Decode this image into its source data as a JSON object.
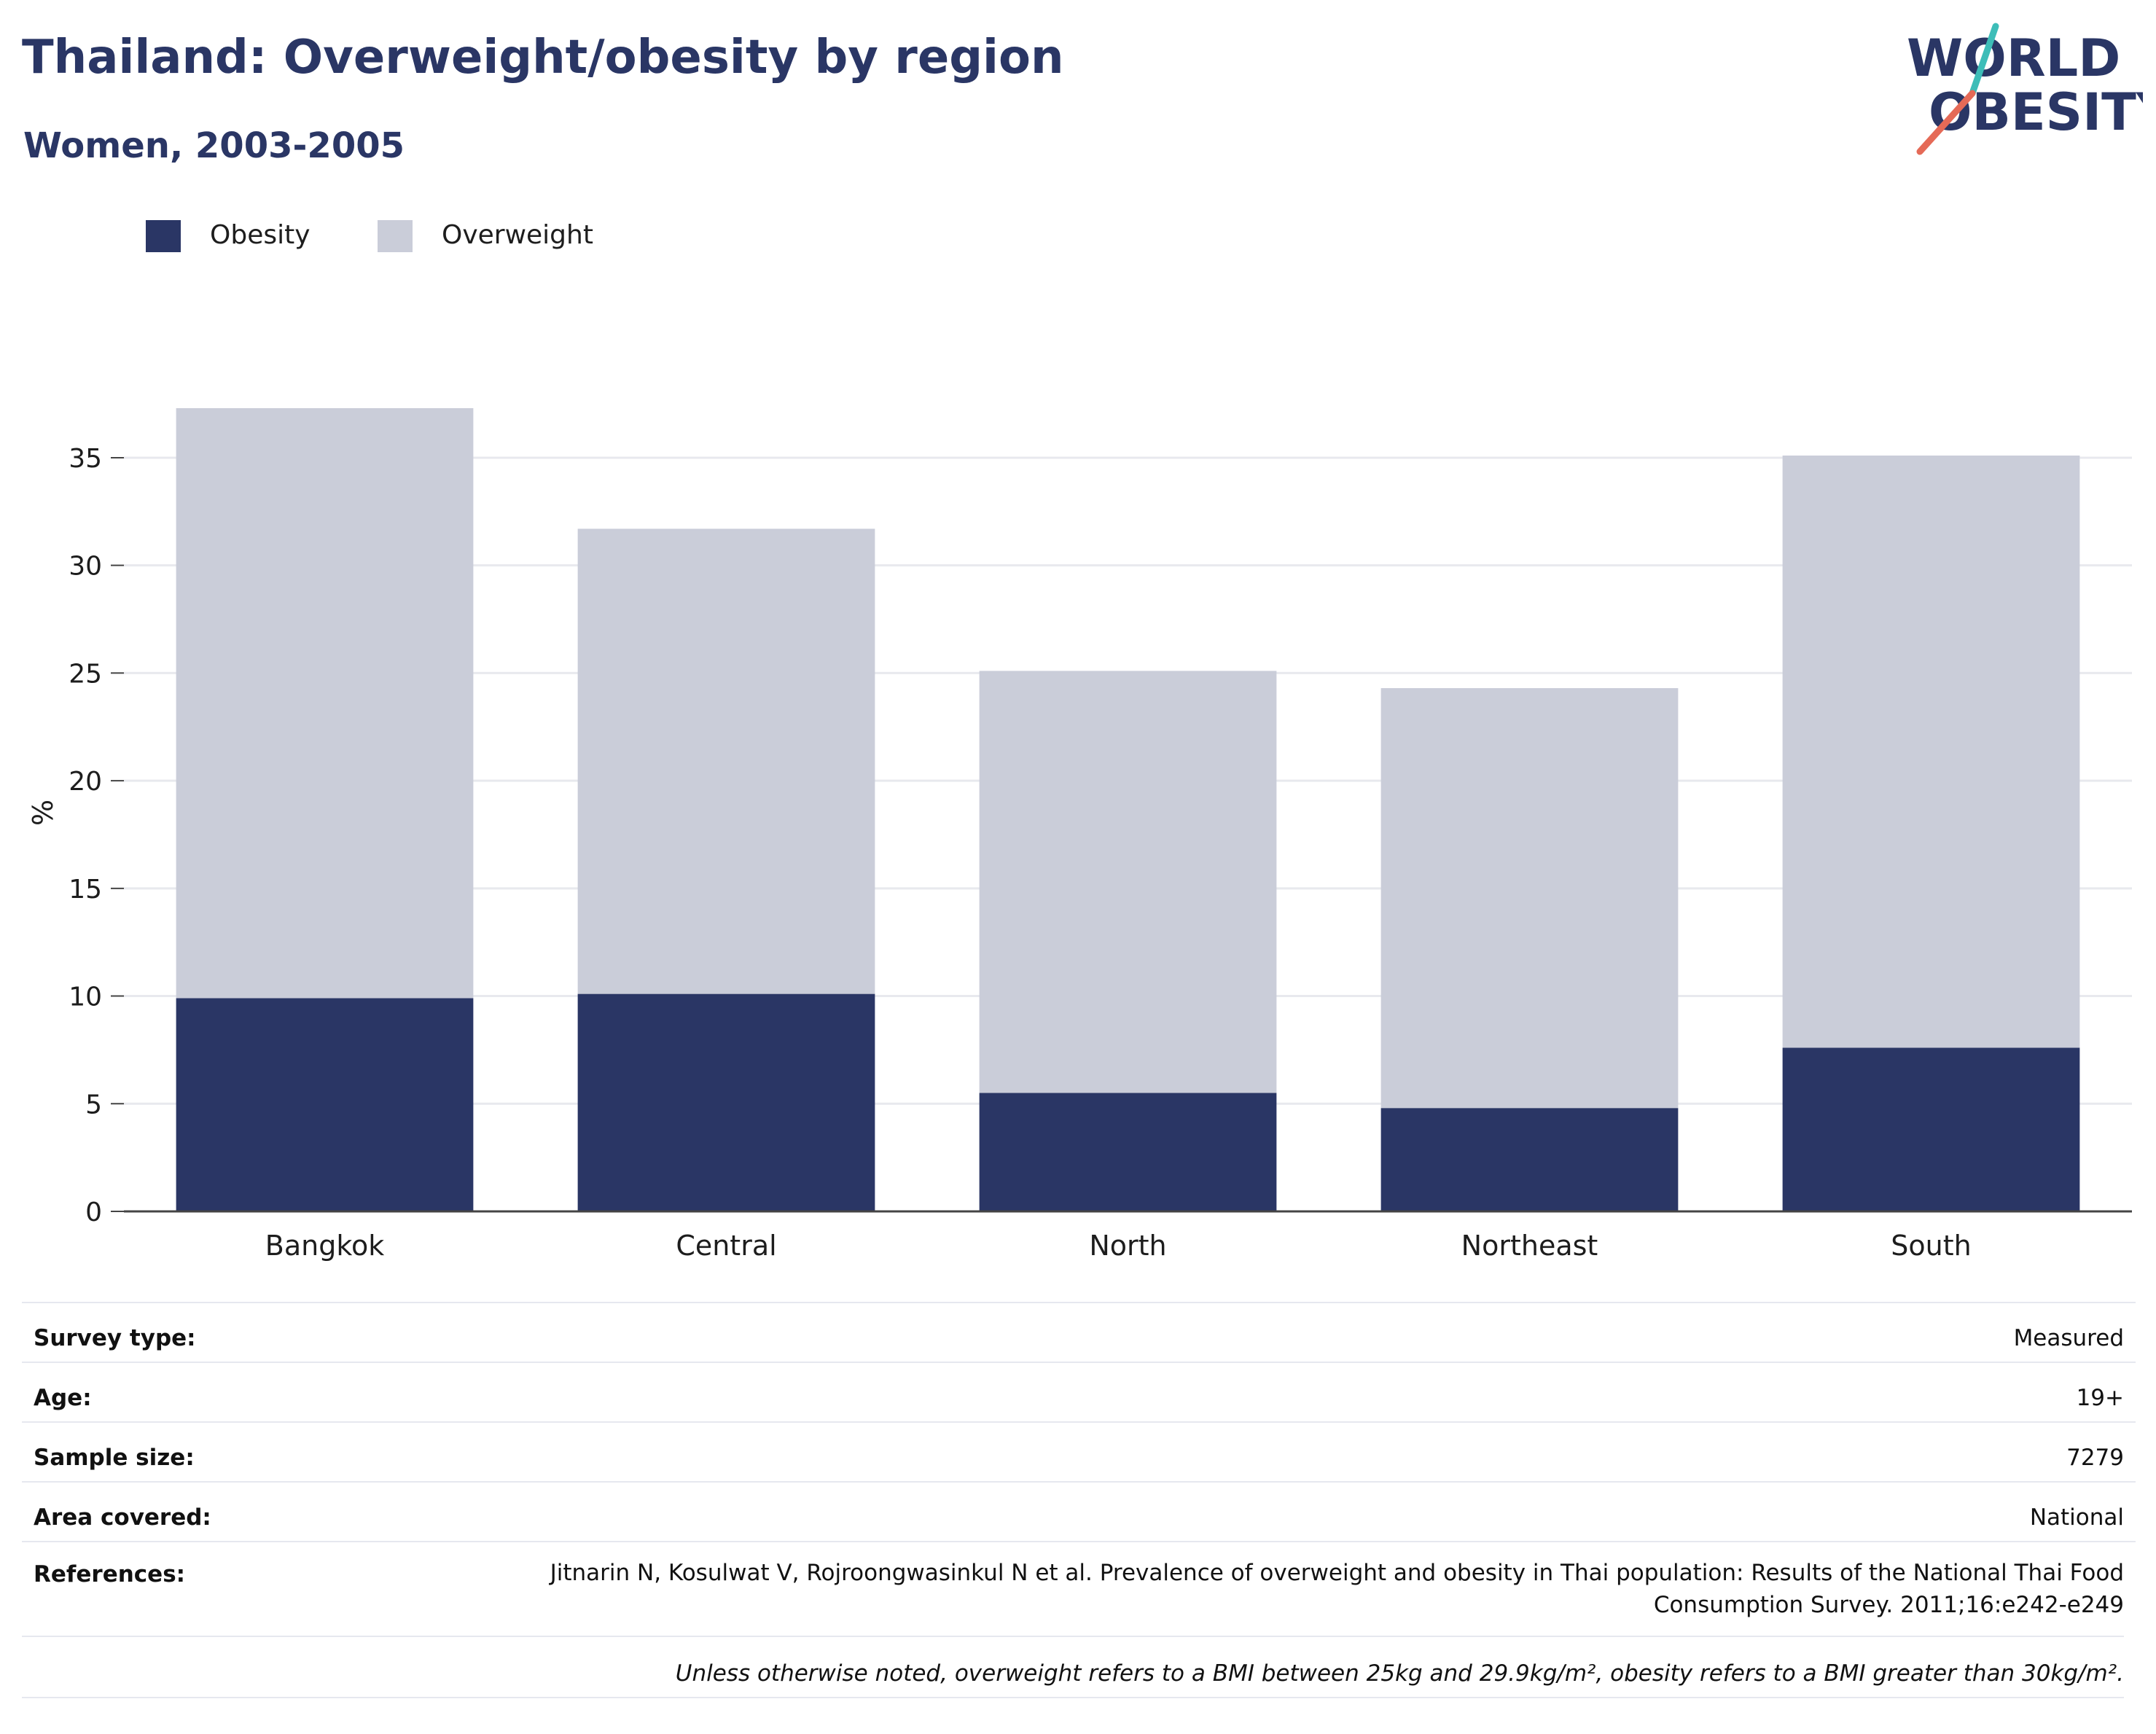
{
  "header": {
    "title": "Thailand: Overweight/obesity by region",
    "subtitle": "Women, 2003-2005"
  },
  "logo": {
    "line1": "WORLD",
    "line2": "OBESITY",
    "accent_teal": "#3dbdb8",
    "accent_coral": "#e56a57"
  },
  "colors": {
    "obesity": "#2a3665",
    "overweight": "#cacdd9",
    "grid": "#e8e9ee",
    "axis": "#444444"
  },
  "legend": {
    "items": [
      {
        "label": "Obesity",
        "color": "#2a3665"
      },
      {
        "label": "Overweight",
        "color": "#cacdd9"
      }
    ]
  },
  "chart_data": {
    "type": "bar",
    "stacked": true,
    "categories": [
      "Bangkok",
      "Central",
      "North",
      "Northeast",
      "South"
    ],
    "series": [
      {
        "name": "Obesity",
        "values": [
          9.9,
          10.1,
          5.5,
          4.8,
          7.6
        ]
      },
      {
        "name": "Overweight",
        "values": [
          27.4,
          21.6,
          19.6,
          19.5,
          27.5
        ]
      }
    ],
    "ylabel": "%",
    "xlabel": "",
    "ylim": [
      0,
      37.3
    ],
    "yticks": [
      0,
      5,
      10,
      15,
      20,
      25,
      30,
      35
    ],
    "grid": true,
    "legend_position": "top-left"
  },
  "info": {
    "rows": [
      {
        "key": "Survey type:",
        "value": "Measured"
      },
      {
        "key": "Age:",
        "value": "19+"
      },
      {
        "key": "Sample size:",
        "value": "7279"
      },
      {
        "key": "Area covered:",
        "value": "National"
      },
      {
        "key": "References:",
        "value": "Jitnarin N, Kosulwat V, Rojroongwasinkul N et al. Prevalence of overweight and obesity in Thai population: Results of the National Thai Food Consumption Survey. 2011;16:e242-e249"
      }
    ],
    "footnote": "Unless otherwise noted, overweight refers to a BMI between 25kg and 29.9kg/m², obesity refers to a BMI greater than 30kg/m²."
  }
}
